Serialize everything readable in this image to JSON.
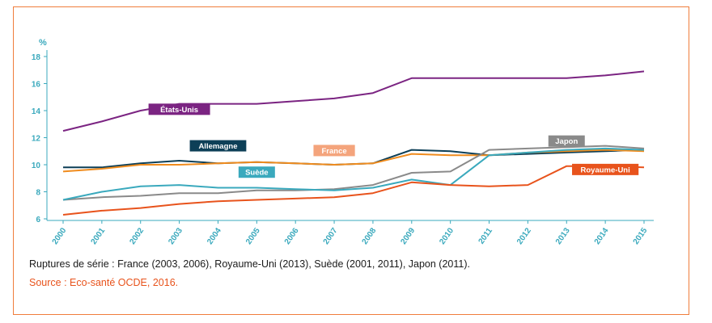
{
  "chart_data": {
    "type": "line",
    "y_unit": "%",
    "ylim": [
      6,
      18
    ],
    "y_ticks": [
      "6",
      "8",
      "10",
      "12",
      "14",
      "16",
      "18"
    ],
    "x": [
      "2000",
      "2001",
      "2002",
      "2003",
      "2004",
      "2005",
      "2006",
      "2007",
      "2008",
      "2009",
      "2010",
      "2011",
      "2012",
      "2013",
      "2014",
      "2015"
    ],
    "series": [
      {
        "name": "États-Unis",
        "color": "#7b2482",
        "label_bg": "#7b2482",
        "label_color": "#ffffff",
        "values": [
          12.5,
          13.2,
          14.0,
          14.5,
          14.5,
          14.5,
          14.7,
          14.9,
          15.3,
          16.4,
          16.4,
          16.4,
          16.4,
          16.4,
          16.6,
          16.9
        ]
      },
      {
        "name": "Allemagne",
        "color": "#0d3f57",
        "label_bg": "#0d3f57",
        "label_color": "#ffffff",
        "values": [
          9.8,
          9.8,
          10.1,
          10.3,
          10.1,
          10.2,
          10.1,
          10.0,
          10.1,
          11.1,
          11.0,
          10.7,
          10.8,
          10.9,
          11.0,
          11.1
        ]
      },
      {
        "name": "France",
        "color": "#f08c1e",
        "label_bg": "#f4a47c",
        "label_color": "#ffffff",
        "values": [
          9.5,
          9.7,
          10.0,
          10.0,
          10.1,
          10.2,
          10.1,
          10.0,
          10.1,
          10.8,
          10.7,
          10.7,
          10.9,
          11.0,
          11.1,
          11.0
        ]
      },
      {
        "name": "Japon",
        "color": "#8a8a8a",
        "label_bg": "#8a8a8a",
        "label_color": "#ffffff",
        "values": [
          7.4,
          7.6,
          7.7,
          7.9,
          7.9,
          8.1,
          8.1,
          8.2,
          8.5,
          9.4,
          9.5,
          11.1,
          11.2,
          11.3,
          11.4,
          11.2
        ]
      },
      {
        "name": "Suède",
        "color": "#3aa9bd",
        "label_bg": "#3aa9bd",
        "label_color": "#ffffff",
        "values": [
          7.4,
          8.0,
          8.4,
          8.5,
          8.3,
          8.3,
          8.2,
          8.1,
          8.3,
          8.9,
          8.5,
          10.7,
          10.9,
          11.1,
          11.2,
          11.1
        ]
      },
      {
        "name": "Royaume-Uni",
        "color": "#e8531c",
        "label_bg": "#e8531c",
        "label_color": "#ffffff",
        "values": [
          6.3,
          6.6,
          6.8,
          7.1,
          7.3,
          7.4,
          7.5,
          7.6,
          7.9,
          8.7,
          8.5,
          8.4,
          8.5,
          9.9,
          9.9,
          9.8
        ]
      }
    ],
    "grid": false,
    "axis_color": "#3aa9bd",
    "tick_label_color": "#3aa9bd"
  },
  "notes": {
    "breaks": "Ruptures de série : France (2003, 2006), Royaume-Uni (2013), Suède (2001, 2011), Japon (2011).",
    "source": "Source : Eco-santé OCDE, 2016."
  }
}
